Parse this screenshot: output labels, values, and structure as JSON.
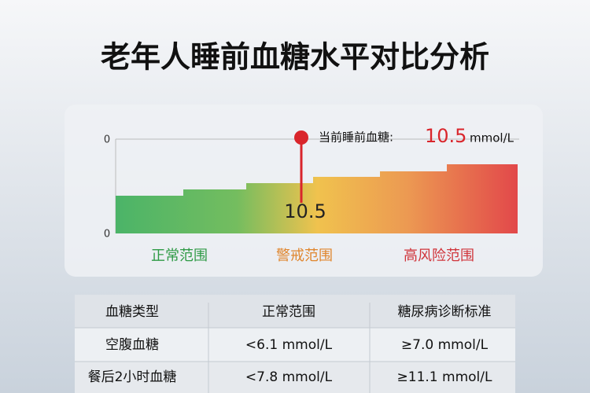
{
  "header": {
    "title": "老年人睡前血糖水平对比分析"
  },
  "gauge": {
    "axis_labels": [
      "0",
      "0"
    ],
    "current_label": "当前睡前血糖:",
    "current_value": "10.5",
    "unit": "mmol/L",
    "marker_value": "10.5",
    "zones": [
      "正常范围",
      "警戒范围",
      "高风险范围"
    ]
  },
  "table": {
    "columns": [
      "血糖类型",
      "正常范围",
      "糖尿病诊断标准"
    ],
    "rows": [
      [
        "空腹血糖",
        "<6.1 mmol/L",
        "≥7.0 mmol/L"
      ],
      [
        "餐后2小时血糖",
        "<7.8 mmol/L",
        "≥11.1 mmol/L"
      ]
    ]
  }
}
